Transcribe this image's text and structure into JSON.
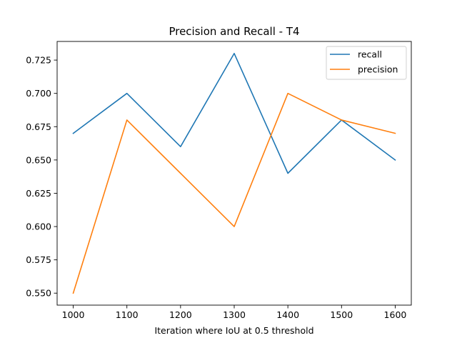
{
  "chart_data": {
    "type": "line",
    "title": "Precision and Recall - T4",
    "xlabel": "Iteration where IoU at 0.5 threshold",
    "ylabel": "",
    "x": [
      1000,
      1100,
      1200,
      1300,
      1400,
      1500,
      1600
    ],
    "xlim": [
      970,
      1630
    ],
    "ylim": [
      0.541,
      0.739
    ],
    "xticks": [
      1000,
      1100,
      1200,
      1300,
      1400,
      1500,
      1600
    ],
    "yticks": [
      0.55,
      0.575,
      0.6,
      0.625,
      0.65,
      0.675,
      0.7,
      0.725
    ],
    "ytick_labels": [
      "0.550",
      "0.575",
      "0.600",
      "0.625",
      "0.650",
      "0.675",
      "0.700",
      "0.725"
    ],
    "grid": false,
    "legend_position": "top-right",
    "series": [
      {
        "name": "recall",
        "color": "#1f77b4",
        "values": [
          0.67,
          0.7,
          0.66,
          0.73,
          0.64,
          0.68,
          0.65
        ]
      },
      {
        "name": "precision",
        "color": "#ff7f0e",
        "values": [
          0.55,
          0.68,
          0.64,
          0.6,
          0.7,
          0.68,
          0.67
        ]
      }
    ]
  }
}
